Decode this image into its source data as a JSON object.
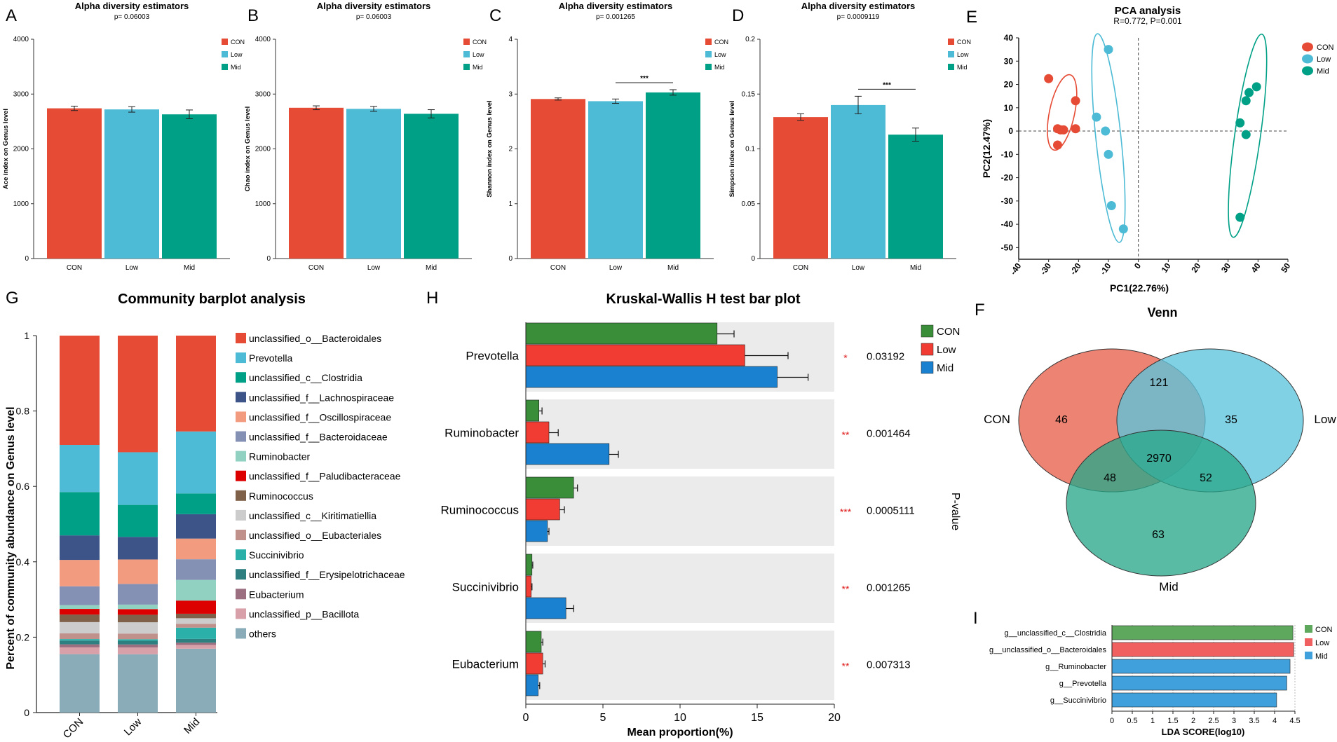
{
  "colors": {
    "con": "#e64b35",
    "low": "#4dbbd5",
    "mid": "#00a087",
    "h_con": "#3a8e3a",
    "h_low": "#f03c32",
    "h_mid": "#1a80d0",
    "i_con": "#5ea85e",
    "i_low": "#f06060",
    "i_mid": "#3fa0dc",
    "venn_con": "#e8604c",
    "venn_low": "#5cc4dd",
    "venn_mid": "#2aa88a"
  },
  "alpha": [
    {
      "letter": "A",
      "title": "Alpha diversity estimators",
      "p": "p= 0.06003",
      "ylabel": "Ace index on Genus level",
      "ymax": 4000,
      "ticks": [
        "0",
        "1000",
        "2000",
        "3000",
        "4000"
      ],
      "tickvals": [
        0,
        1000,
        2000,
        3000,
        4000
      ],
      "values": [
        2740,
        2720,
        2630
      ],
      "errors": [
        40,
        50,
        80
      ],
      "sig": "",
      "sig_between": []
    },
    {
      "letter": "B",
      "title": "Alpha diversity estimators",
      "p": "p= 0.06003",
      "ylabel": "Chao index on Genus level",
      "ymax": 4000,
      "ticks": [
        "0",
        "1000",
        "2000",
        "3000",
        "4000"
      ],
      "tickvals": [
        0,
        1000,
        2000,
        3000,
        4000
      ],
      "values": [
        2750,
        2730,
        2640
      ],
      "errors": [
        35,
        45,
        75
      ],
      "sig": "",
      "sig_between": []
    },
    {
      "letter": "C",
      "title": "Alpha diversity estimators",
      "p": "p= 0.001265",
      "ylabel": "Shannon index on Genus level",
      "ymax": 4,
      "ticks": [
        "0",
        "1",
        "2",
        "3",
        "4"
      ],
      "tickvals": [
        0,
        1,
        2,
        3,
        4
      ],
      "values": [
        2.91,
        2.87,
        3.03
      ],
      "errors": [
        0.02,
        0.04,
        0.05
      ],
      "sig": "***",
      "sig_between": [
        1,
        2
      ]
    },
    {
      "letter": "D",
      "title": "Alpha diversity estimators",
      "p": "p= 0.0009119",
      "ylabel": "Simpson index on Genus level",
      "ymax": 0.2,
      "ticks": [
        "0",
        "0.05",
        "0.1",
        "0.15",
        "0.2"
      ],
      "tickvals": [
        0,
        0.05,
        0.1,
        0.15,
        0.2
      ],
      "values": [
        0.129,
        0.14,
        0.113
      ],
      "errors": [
        0.003,
        0.008,
        0.006
      ],
      "sig": "***",
      "sig_between": [
        1,
        2
      ]
    }
  ],
  "groups": [
    "CON",
    "Low",
    "Mid"
  ],
  "chart_data": [
    {
      "type": "bar",
      "panel": "A",
      "title": "Alpha diversity estimators",
      "subtitle": "p= 0.06003",
      "ylabel": "Ace index on Genus level",
      "categories": [
        "CON",
        "Low",
        "Mid"
      ],
      "values": [
        2740,
        2720,
        2630
      ],
      "ylim": [
        0,
        4000
      ]
    },
    {
      "type": "bar",
      "panel": "B",
      "title": "Alpha diversity estimators",
      "subtitle": "p= 0.06003",
      "ylabel": "Chao index on Genus level",
      "categories": [
        "CON",
        "Low",
        "Mid"
      ],
      "values": [
        2750,
        2730,
        2640
      ],
      "ylim": [
        0,
        4000
      ]
    },
    {
      "type": "bar",
      "panel": "C",
      "title": "Alpha diversity estimators",
      "subtitle": "p= 0.001265",
      "ylabel": "Shannon index on Genus level",
      "categories": [
        "CON",
        "Low",
        "Mid"
      ],
      "values": [
        2.91,
        2.87,
        3.03
      ],
      "ylim": [
        0,
        4
      ]
    },
    {
      "type": "bar",
      "panel": "D",
      "title": "Alpha diversity estimators",
      "subtitle": "p= 0.0009119",
      "ylabel": "Simpson index on Genus level",
      "categories": [
        "CON",
        "Low",
        "Mid"
      ],
      "values": [
        0.129,
        0.14,
        0.113
      ],
      "ylim": [
        0,
        0.2
      ]
    },
    {
      "type": "scatter",
      "panel": "E",
      "title": "PCA analysis",
      "subtitle": "R=0.772, P=0.001",
      "xlabel": "PC1(22.76%)",
      "ylabel": "PC2(12.47%)",
      "xlim": [
        -40,
        50
      ],
      "ylim": [
        -55,
        40
      ],
      "series": [
        {
          "name": "CON",
          "x": [
            -30,
            -27,
            -26,
            -25,
            -21,
            -21,
            -27
          ],
          "y": [
            22.5,
            1,
            0.5,
            0.5,
            13,
            1,
            -6
          ]
        },
        {
          "name": "Low",
          "x": [
            -10,
            -14,
            -11,
            -10,
            -9,
            -5
          ],
          "y": [
            35,
            6,
            0,
            -10,
            -32,
            -42
          ]
        },
        {
          "name": "Mid",
          "x": [
            39.5,
            37,
            36,
            34,
            34,
            36
          ],
          "y": [
            19,
            16.5,
            13,
            3.5,
            -37,
            -1.5
          ]
        }
      ]
    },
    {
      "type": "bar",
      "panel": "G",
      "title": "Community barplot analysis",
      "ylabel": "Percent of community abundance on Genus level",
      "categories": [
        "CON",
        "Low",
        "Mid"
      ],
      "series": [
        {
          "name": "unclassified_o__Bacteroidales",
          "values": [
            0.29,
            0.31,
            0.255
          ]
        },
        {
          "name": "Prevotella",
          "values": [
            0.125,
            0.14,
            0.165
          ]
        },
        {
          "name": "unclassified_c__Clostridia",
          "values": [
            0.115,
            0.085,
            0.055
          ]
        },
        {
          "name": "unclassified_f__Lachnospiraceae",
          "values": [
            0.065,
            0.06,
            0.065
          ]
        },
        {
          "name": "unclassified_f__Oscillospiraceae",
          "values": [
            0.07,
            0.065,
            0.055
          ]
        },
        {
          "name": "unclassified_f__Bacteroidaceae",
          "values": [
            0.05,
            0.055,
            0.055
          ]
        },
        {
          "name": "Ruminobacter",
          "values": [
            0.01,
            0.012,
            0.055
          ]
        },
        {
          "name": "unclassified_f__Paludibacteraceae",
          "values": [
            0.015,
            0.015,
            0.035
          ]
        },
        {
          "name": "Ruminococcus",
          "values": [
            0.02,
            0.02,
            0.012
          ]
        },
        {
          "name": "unclassified_c__Kiritimatiellia",
          "values": [
            0.03,
            0.03,
            0.015
          ]
        },
        {
          "name": "unclassified_o__Eubacteriales",
          "values": [
            0.015,
            0.015,
            0.01
          ]
        },
        {
          "name": "Succinivibrio",
          "values": [
            0.004,
            0.004,
            0.03
          ]
        },
        {
          "name": "unclassified_f__Erysipelotrichaceae",
          "values": [
            0.01,
            0.01,
            0.01
          ]
        },
        {
          "name": "Eubacterium",
          "values": [
            0.008,
            0.008,
            0.006
          ]
        },
        {
          "name": "unclassified_p__Bacillota",
          "values": [
            0.018,
            0.018,
            0.01
          ]
        },
        {
          "name": "others",
          "values": [
            0.155,
            0.155,
            0.17
          ]
        }
      ],
      "ylim": [
        0,
        1
      ]
    },
    {
      "type": "bar",
      "panel": "H",
      "title": "Kruskal-Wallis H test bar plot",
      "xlabel": "Mean proportion(%)",
      "ylabel": "P-value",
      "categories": [
        "Prevotella",
        "Ruminobacter",
        "Ruminococcus",
        "Succinivibrio",
        "Eubacterium"
      ],
      "series": [
        {
          "name": "CON",
          "values": [
            12.4,
            0.85,
            3.1,
            0.4,
            1.0
          ],
          "errors": [
            1.1,
            0.2,
            0.25,
            0.05,
            0.1
          ]
        },
        {
          "name": "Low",
          "values": [
            14.2,
            1.5,
            2.2,
            0.35,
            1.1
          ],
          "errors": [
            2.8,
            0.6,
            0.3,
            0.05,
            0.15
          ]
        },
        {
          "name": "Mid",
          "values": [
            16.3,
            5.4,
            1.4,
            2.6,
            0.8
          ],
          "errors": [
            2.0,
            0.6,
            0.1,
            0.5,
            0.1
          ]
        }
      ],
      "stars": [
        "*",
        "**",
        "***",
        "**",
        "**"
      ],
      "pvalues": [
        "0.03192",
        "0.001464",
        "0.0005111",
        "0.001265",
        "0.007313"
      ],
      "xlim": [
        0,
        20
      ],
      "xticks": [
        "0",
        "5",
        "10",
        "15",
        "20"
      ]
    },
    {
      "type": "venn",
      "panel": "F",
      "title": "Venn",
      "sets": [
        "CON",
        "Low",
        "Mid"
      ],
      "regions": {
        "CON_only": "46",
        "Low_only": "35",
        "Mid_only": "63",
        "CON_Low": "121",
        "CON_Mid": "48",
        "Low_Mid": "52",
        "all": "2970"
      }
    },
    {
      "type": "bar",
      "panel": "I",
      "xlabel": "LDA SCORE(log10)",
      "categories": [
        "g__unclassified_c__Clostridia",
        "g__unclassified_o__Bacteroidales",
        "g__Ruminobacter",
        "g__Prevotella",
        "g__Succinivibrio"
      ],
      "groups": [
        "CON",
        "Low",
        "Mid",
        "Mid",
        "Mid"
      ],
      "values": [
        4.45,
        4.47,
        4.38,
        4.3,
        4.05
      ],
      "xlim": [
        0,
        4.5
      ],
      "xticks": [
        "0",
        "0.5",
        "1",
        "1.5",
        "2",
        "2.5",
        "3",
        "3.5",
        "4",
        "4.5"
      ]
    }
  ],
  "pca": {
    "letter": "E",
    "title": "PCA analysis",
    "subtitle": "R=0.772, P=0.001",
    "xlabel": "PC1(22.76%)",
    "ylabel": "PC2(12.47%)",
    "xticks": [
      "-40",
      "-30",
      "-20",
      "-10",
      "0",
      "10",
      "20",
      "30",
      "40",
      "50"
    ],
    "yticks": [
      "40",
      "30",
      "20",
      "10",
      "0",
      "-10",
      "-20",
      "-30",
      "-40",
      "-50"
    ]
  },
  "community": {
    "letter": "G",
    "title": "Community barplot analysis",
    "ylabel": "Percent of community abundance on Genus level",
    "yticks": [
      "0",
      "0.2",
      "0.4",
      "0.6",
      "0.8",
      "1"
    ],
    "legend_colors": [
      "#e64b35",
      "#4dbbd5",
      "#00a087",
      "#3c5488",
      "#f39b7f",
      "#8491b4",
      "#91d1c2",
      "#dc0000",
      "#7e6148",
      "#cccccc",
      "#c0908a",
      "#2ab0a8",
      "#2e7f80",
      "#9b6f80",
      "#d8a0a8",
      "#8aabb8"
    ]
  },
  "kw": {
    "letter": "H",
    "title": "Kruskal-Wallis H test bar plot",
    "xlabel": "Mean proportion(%)",
    "ylabel": "P-value"
  },
  "venn": {
    "letter": "F",
    "title": "Venn"
  },
  "lda": {
    "letter": "I",
    "xlabel": "LDA SCORE(log10)"
  }
}
